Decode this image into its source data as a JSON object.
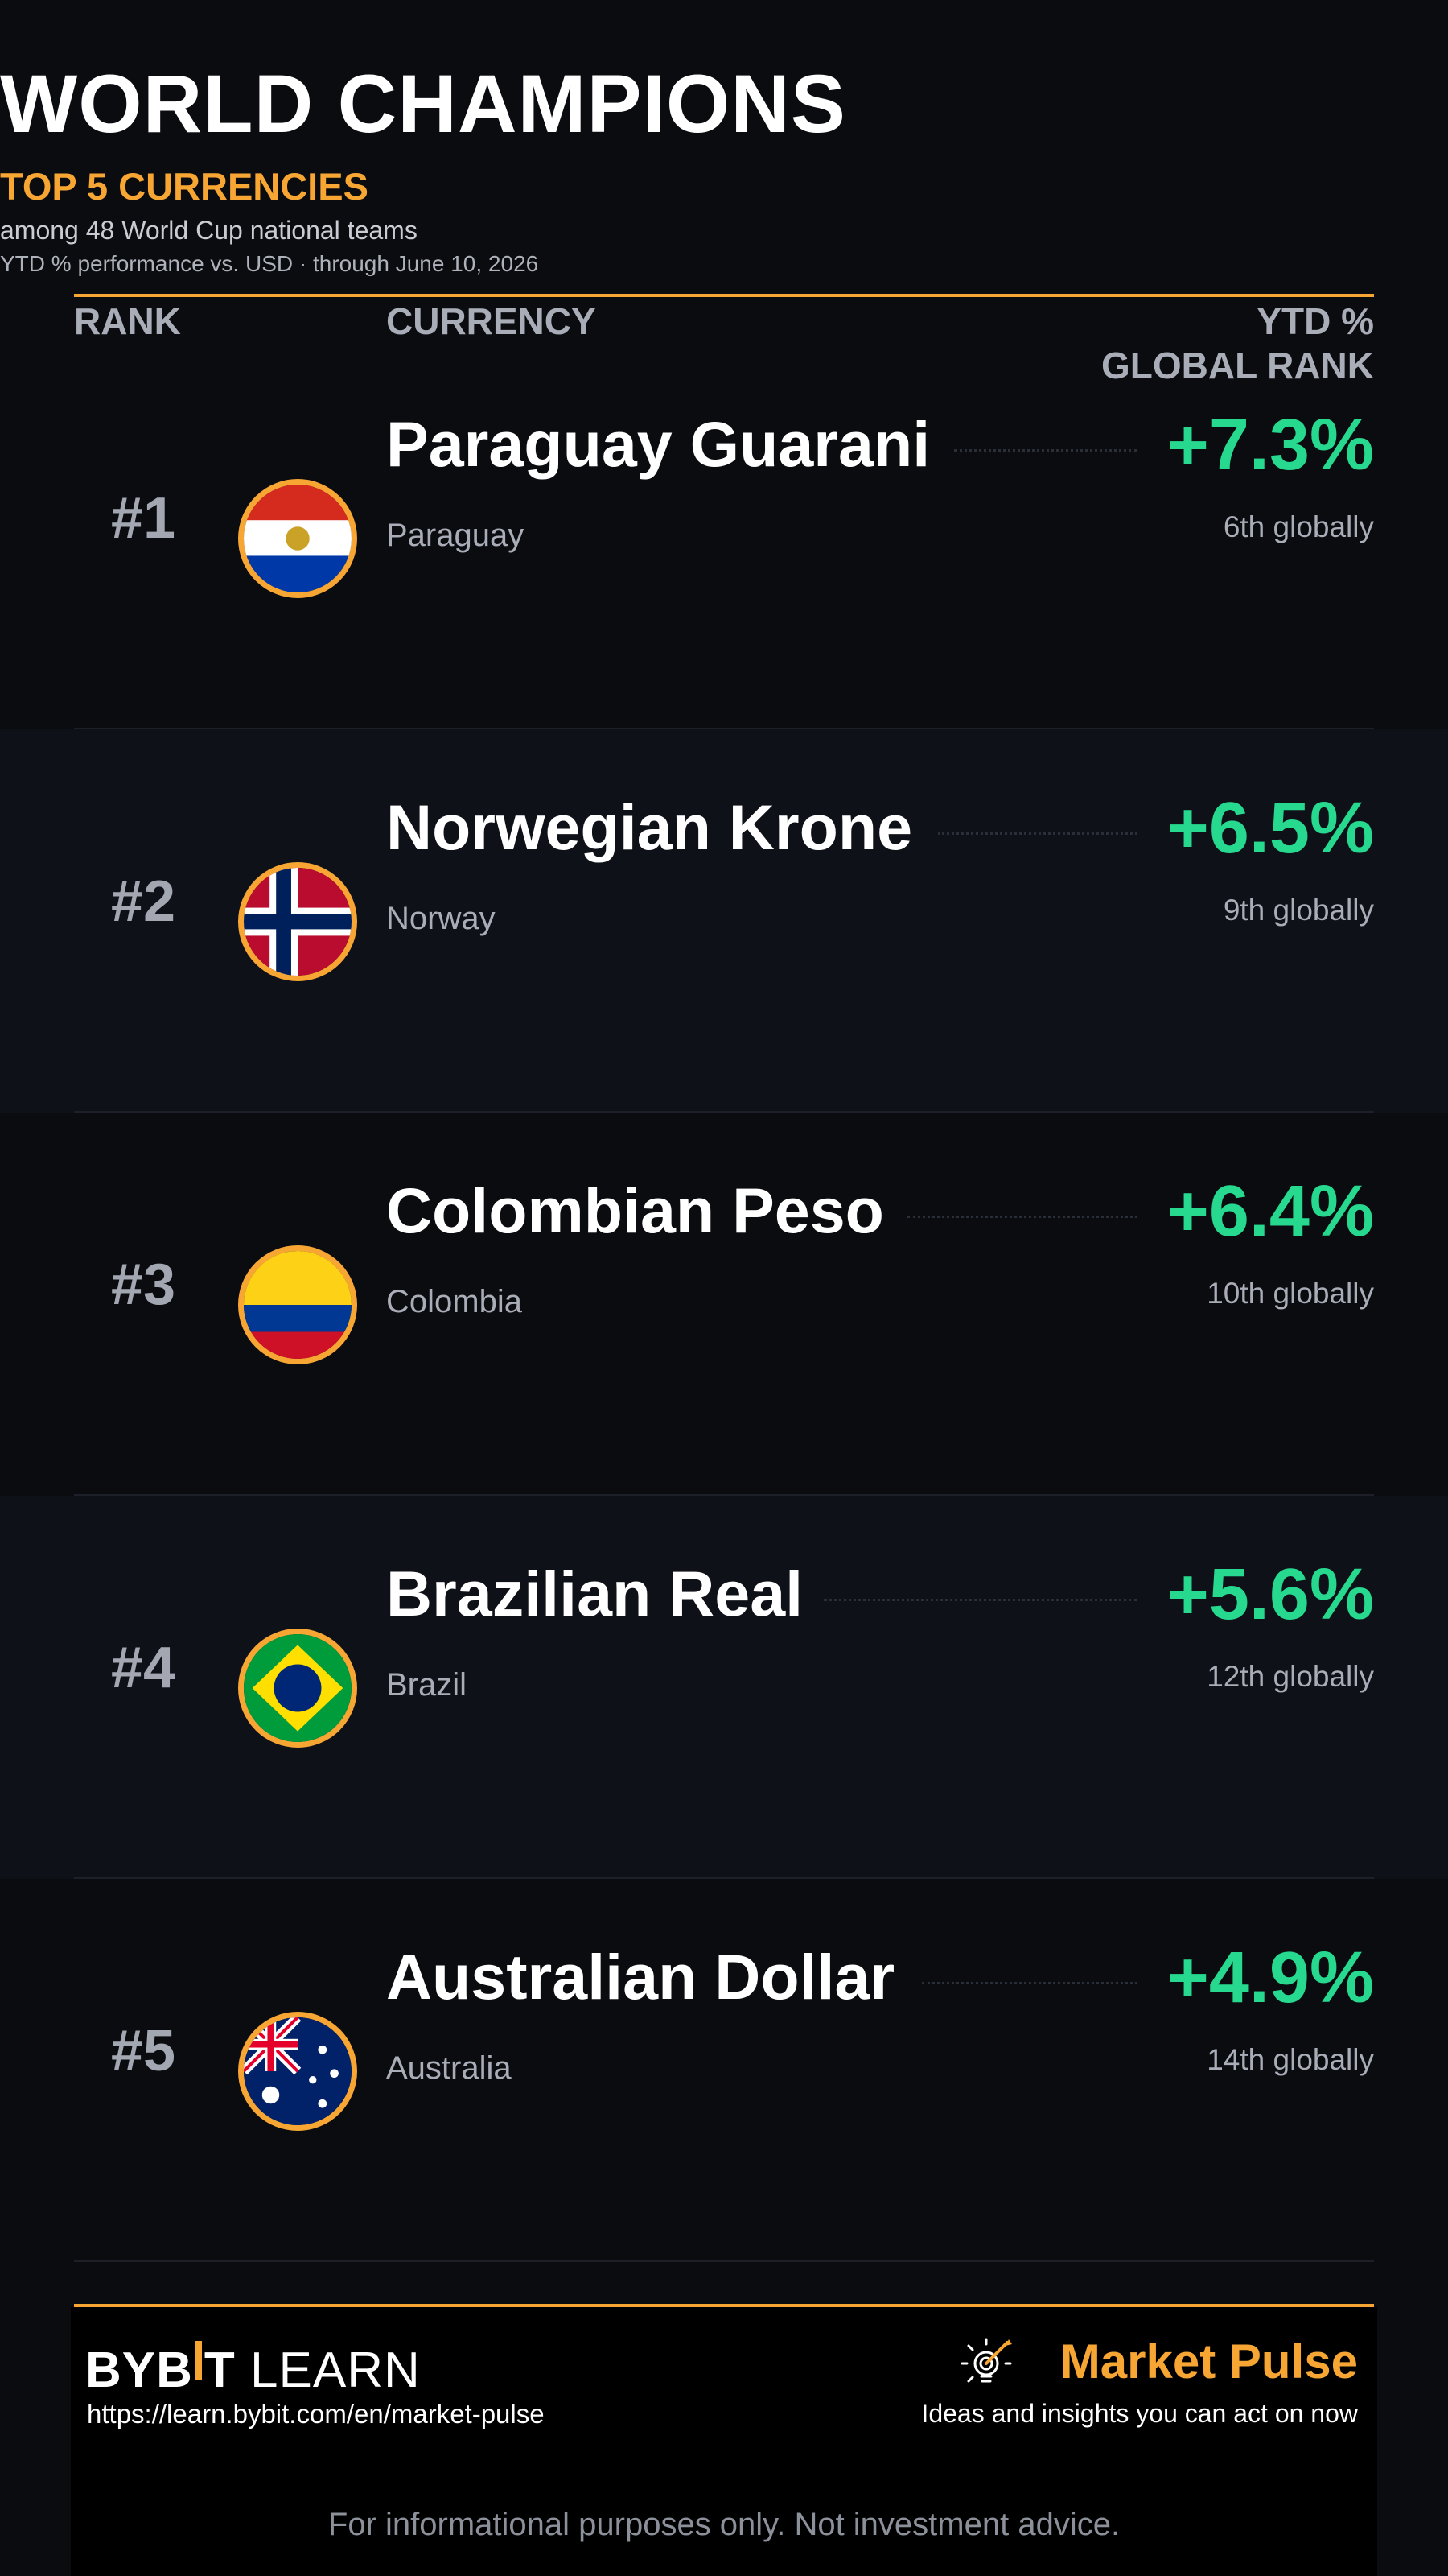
{
  "header": {
    "title": "WORLD CHAMPIONS",
    "subtitle": "TOP 5 CURRENCIES",
    "caption": "among 48 World Cup national teams",
    "caption2": "YTD % performance vs. USD  ·  through June 10, 2026"
  },
  "columns": {
    "rank": "RANK",
    "currency": "CURRENCY",
    "ytd": "YTD %",
    "global_rank": "GLOBAL RANK"
  },
  "rows": [
    {
      "rank": "#1",
      "currency": "Paraguay Guarani",
      "country": "Paraguay",
      "ytd": "+7.3%",
      "global": "6th globally",
      "flag": "paraguay-flag-icon"
    },
    {
      "rank": "#2",
      "currency": "Norwegian Krone",
      "country": "Norway",
      "ytd": "+6.5%",
      "global": "9th globally",
      "flag": "norway-flag-icon"
    },
    {
      "rank": "#3",
      "currency": "Colombian Peso",
      "country": "Colombia",
      "ytd": "+6.4%",
      "global": "10th globally",
      "flag": "colombia-flag-icon"
    },
    {
      "rank": "#4",
      "currency": "Brazilian Real",
      "country": "Brazil",
      "ytd": "+5.6%",
      "global": "12th globally",
      "flag": "brazil-flag-icon"
    },
    {
      "rank": "#5",
      "currency": "Australian Dollar",
      "country": "Australia",
      "ytd": "+4.9%",
      "global": "14th globally",
      "flag": "australia-flag-icon"
    }
  ],
  "footer": {
    "brand_left": "BYB",
    "brand_right": "T",
    "brand_learn": "LEARN",
    "url": "https://learn.bybit.com/en/market-pulse",
    "pulse_title": "Market Pulse",
    "pulse_icon": "lightbulb-target-icon",
    "tagline": "Ideas and insights you can act on now",
    "disclaimer": "For informational purposes only. Not investment advice."
  },
  "colors": {
    "accent": "#f7a634",
    "positive": "#26d98f",
    "background": "#0b0c10",
    "row_alt": "#0f1118"
  }
}
